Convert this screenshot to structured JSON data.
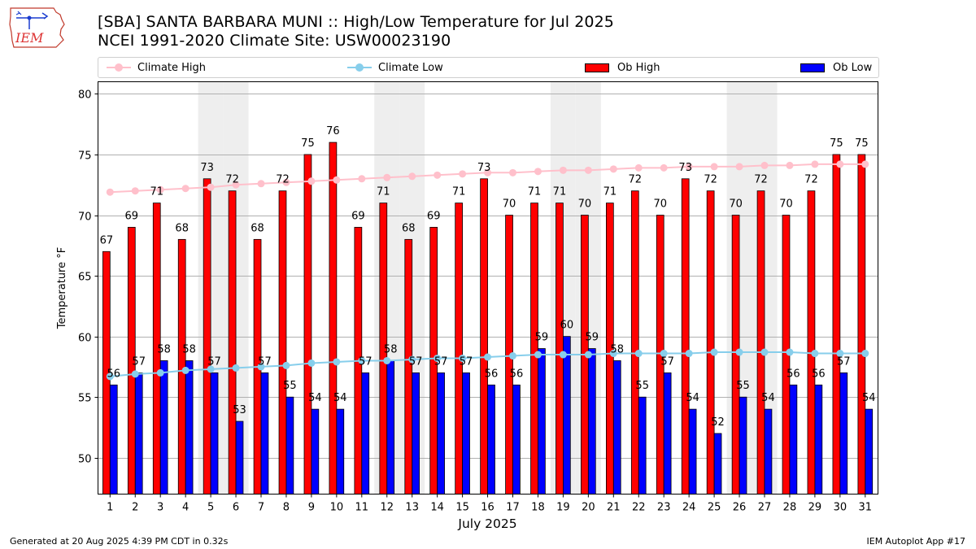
{
  "title_line1": "[SBA] SANTA BARBARA MUNI :: High/Low Temperature for Jul 2025",
  "title_line2": "NCEI 1991-2020 Climate Site: USW00023190",
  "logo_text": "IEM",
  "footer": {
    "left": "Generated at 20 Aug 2025 4:39 PM CDT in 0.32s",
    "right": "IEM Autoplot App #17"
  },
  "colors": {
    "ob_high": "#ff0000",
    "ob_low": "#0000ff",
    "climate_high": "#ffc0cb",
    "climate_low": "#87ceeb",
    "weekend_shade": "#eeeeee",
    "grid": "#b0b0b0"
  },
  "chart_data": {
    "type": "bar",
    "xlabel": "July 2025",
    "ylabel": "Temperature °F",
    "ylim": [
      47,
      81
    ],
    "yticks": [
      50,
      55,
      60,
      65,
      70,
      75,
      80
    ],
    "grid": "horizontal",
    "legend_position": "top",
    "categories": [
      "1",
      "2",
      "3",
      "4",
      "5",
      "6",
      "7",
      "8",
      "9",
      "10",
      "11",
      "12",
      "13",
      "14",
      "15",
      "16",
      "17",
      "18",
      "19",
      "20",
      "21",
      "22",
      "23",
      "24",
      "25",
      "26",
      "27",
      "28",
      "29",
      "30",
      "31"
    ],
    "weekend_days": [
      5,
      6,
      12,
      13,
      19,
      20,
      26,
      27
    ],
    "series": [
      {
        "name": "Climate High",
        "kind": "line",
        "values": [
          71.9,
          72.0,
          72.1,
          72.2,
          72.3,
          72.5,
          72.6,
          72.7,
          72.8,
          72.9,
          73.0,
          73.1,
          73.2,
          73.3,
          73.4,
          73.5,
          73.5,
          73.6,
          73.7,
          73.7,
          73.8,
          73.9,
          73.9,
          74.0,
          74.0,
          74.0,
          74.1,
          74.1,
          74.2,
          74.2,
          74.2
        ]
      },
      {
        "name": "Climate Low",
        "kind": "line",
        "values": [
          56.7,
          56.9,
          57.0,
          57.2,
          57.3,
          57.4,
          57.5,
          57.6,
          57.8,
          57.9,
          58.0,
          58.0,
          58.1,
          58.2,
          58.2,
          58.3,
          58.4,
          58.5,
          58.5,
          58.5,
          58.6,
          58.6,
          58.6,
          58.6,
          58.7,
          58.7,
          58.7,
          58.7,
          58.6,
          58.6,
          58.6
        ]
      },
      {
        "name": "Ob High",
        "kind": "bar",
        "values": [
          67,
          69,
          71,
          68,
          73,
          72,
          68,
          72,
          75,
          76,
          69,
          71,
          68,
          69,
          71,
          73,
          70,
          71,
          71,
          70,
          71,
          72,
          70,
          73,
          72,
          70,
          72,
          70,
          72,
          75,
          75
        ]
      },
      {
        "name": "Ob Low",
        "kind": "bar",
        "values": [
          56,
          57,
          58,
          58,
          57,
          53,
          57,
          55,
          54,
          54,
          57,
          58,
          57,
          57,
          57,
          56,
          56,
          59,
          60,
          59,
          58,
          55,
          57,
          54,
          52,
          55,
          54,
          56,
          56,
          57,
          54
        ]
      }
    ]
  }
}
